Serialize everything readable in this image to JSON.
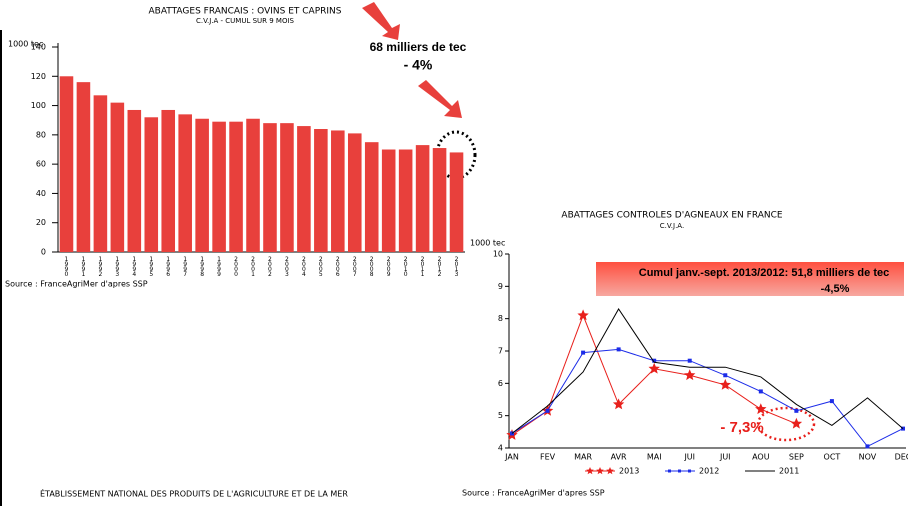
{
  "chart_data": [
    {
      "type": "bar",
      "title": "ABATTAGES FRANCAIS : OVINS ET CAPRINS",
      "subtitle": "C.V.J.A - CUMUL SUR 9 MOIS",
      "y_label": "1000 tec",
      "categories": [
        "1990",
        "1991",
        "1992",
        "1993",
        "1994",
        "1995",
        "1996",
        "1997",
        "1998",
        "1999",
        "2000",
        "2001",
        "2002",
        "2003",
        "2004",
        "2005",
        "2006",
        "2007",
        "2008",
        "2009",
        "2010",
        "2011",
        "2012",
        "2013"
      ],
      "values": [
        120,
        116,
        107,
        102,
        97,
        92,
        97,
        94,
        91,
        89,
        89,
        91,
        88,
        88,
        86,
        84,
        83,
        81,
        75,
        70,
        70,
        73,
        71,
        68
      ],
      "color": "#e8403c",
      "ylim": [
        0,
        140
      ],
      "yticks": [
        0,
        20,
        40,
        60,
        80,
        100,
        120,
        140
      ],
      "grid": false,
      "annotations": [
        "68 milliers de tec",
        "- 4%"
      ],
      "source": "Source : FranceAgriMer d'apres SSP"
    },
    {
      "type": "line",
      "title": "ABATTAGES CONTROLES D'AGNEAUX EN FRANCE",
      "subtitle": "C.V.J.A.",
      "y_label": "1000 tec",
      "categories": [
        "JAN",
        "FEV",
        "MAR",
        "AVR",
        "MAI",
        "JUI",
        "JUI",
        "AOU",
        "SEP",
        "OCT",
        "NOV",
        "DEC"
      ],
      "series": [
        {
          "name": "2013",
          "color": "#e8201c",
          "marker": "star",
          "values": [
            4.4,
            5.15,
            8.1,
            5.35,
            6.45,
            6.25,
            5.95,
            5.2,
            4.75,
            null,
            null,
            null
          ]
        },
        {
          "name": "2012",
          "color": "#1c2ce8",
          "marker": "square",
          "values": [
            4.45,
            5.15,
            6.95,
            7.05,
            6.7,
            6.7,
            6.25,
            5.75,
            5.15,
            5.45,
            4.05,
            4.6
          ]
        },
        {
          "name": "2011",
          "color": "#000000",
          "marker": "none",
          "values": [
            4.45,
            5.3,
            6.35,
            8.3,
            6.65,
            6.5,
            6.5,
            6.2,
            5.35,
            4.7,
            5.55,
            4.6
          ]
        }
      ],
      "ylim": [
        4,
        10
      ],
      "yticks": [
        4,
        5,
        6,
        7,
        8,
        9,
        10
      ],
      "grid": false,
      "legend": "bottom",
      "annotations": [
        "Cumul janv.-sept. 2013/2012: 51,8 milliers de tec",
        "-4,5%",
        "- 7,3%"
      ],
      "source": "Source : FranceAgriMer d'apres SSP"
    }
  ],
  "footer": "ÉTABLISSEMENT NATIONAL DES PRODUITS DE L'AGRICULTURE ET DE LA MER"
}
